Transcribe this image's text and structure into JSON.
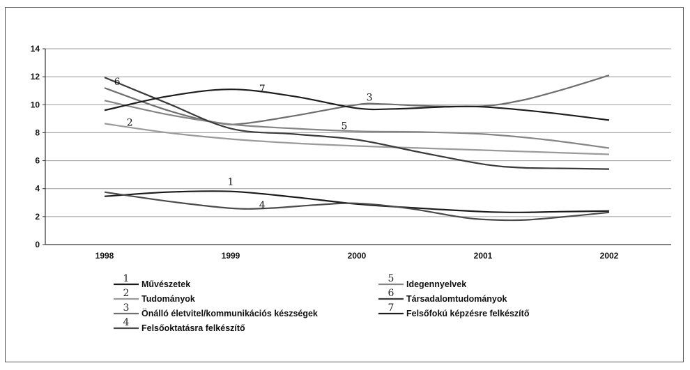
{
  "chart_data": {
    "type": "line",
    "x": [
      "1998",
      "1999",
      "2000",
      "2001",
      "2002"
    ],
    "ylim": [
      0,
      14
    ],
    "yticks": [
      "0",
      "2",
      "4",
      "6",
      "8",
      "10",
      "12",
      "14"
    ],
    "grid": true,
    "legend_position": "bottom",
    "series": [
      {
        "id": "1",
        "name": "Művészetek",
        "color": "#1a1a1a",
        "points": [
          [
            0,
            3.45
          ],
          [
            0.5,
            3.75
          ],
          [
            1,
            3.8
          ],
          [
            1.5,
            3.4
          ],
          [
            2,
            2.9
          ],
          [
            2.5,
            2.6
          ],
          [
            3,
            2.35
          ],
          [
            3.3,
            2.3
          ],
          [
            3.6,
            2.35
          ],
          [
            4,
            2.4
          ]
        ]
      },
      {
        "id": "2",
        "name": "Tudományok",
        "color": "#9a9a9a",
        "points": [
          [
            0,
            8.65
          ],
          [
            0.5,
            8.0
          ],
          [
            1,
            7.55
          ],
          [
            1.5,
            7.25
          ],
          [
            2,
            7.05
          ],
          [
            2.5,
            6.9
          ],
          [
            3,
            6.75
          ],
          [
            3.5,
            6.6
          ],
          [
            4,
            6.45
          ]
        ]
      },
      {
        "id": "3",
        "name": "Önálló életvitel/kommunikációs készségek",
        "color": "#6e6e6e",
        "points": [
          [
            0,
            11.2
          ],
          [
            0.5,
            9.6
          ],
          [
            0.9,
            8.7
          ],
          [
            1.1,
            8.65
          ],
          [
            1.5,
            9.2
          ],
          [
            2,
            10.0
          ],
          [
            2.2,
            10.05
          ],
          [
            2.6,
            9.9
          ],
          [
            3,
            9.9
          ],
          [
            3.3,
            10.3
          ],
          [
            3.6,
            11.0
          ],
          [
            4,
            12.1
          ]
        ]
      },
      {
        "id": "4",
        "name": "Felsőoktatásra felkészítő",
        "color": "#4a4a4a",
        "points": [
          [
            0,
            3.75
          ],
          [
            0.5,
            3.1
          ],
          [
            1,
            2.6
          ],
          [
            1.3,
            2.6
          ],
          [
            1.7,
            2.85
          ],
          [
            2,
            2.95
          ],
          [
            2.4,
            2.6
          ],
          [
            2.8,
            2.0
          ],
          [
            3,
            1.8
          ],
          [
            3.3,
            1.75
          ],
          [
            3.6,
            1.95
          ],
          [
            4,
            2.3
          ]
        ]
      },
      {
        "id": "5",
        "name": "Idegennyelvek",
        "color": "#858585",
        "points": [
          [
            0,
            10.3
          ],
          [
            0.5,
            9.3
          ],
          [
            1,
            8.6
          ],
          [
            1.5,
            8.3
          ],
          [
            2,
            8.1
          ],
          [
            2.5,
            8.05
          ],
          [
            3,
            7.9
          ],
          [
            3.5,
            7.5
          ],
          [
            4,
            6.9
          ]
        ]
      },
      {
        "id": "6",
        "name": "Társadalomtudományok",
        "color": "#3a3a3a",
        "points": [
          [
            0,
            11.95
          ],
          [
            0.5,
            10.1
          ],
          [
            1,
            8.3
          ],
          [
            1.5,
            7.9
          ],
          [
            2,
            7.5
          ],
          [
            2.5,
            6.6
          ],
          [
            3,
            5.75
          ],
          [
            3.3,
            5.5
          ],
          [
            3.6,
            5.45
          ],
          [
            4,
            5.4
          ]
        ]
      },
      {
        "id": "7",
        "name": "Felsőfokú képzésre felkészítő",
        "color": "#1c1c1c",
        "points": [
          [
            0,
            9.6
          ],
          [
            0.5,
            10.6
          ],
          [
            1,
            11.1
          ],
          [
            1.5,
            10.6
          ],
          [
            2,
            9.75
          ],
          [
            2.3,
            9.7
          ],
          [
            2.7,
            9.85
          ],
          [
            3,
            9.85
          ],
          [
            3.5,
            9.45
          ],
          [
            4,
            8.9
          ]
        ]
      }
    ],
    "line_labels": [
      {
        "text": "1",
        "x": 1.0,
        "y": 4.25
      },
      {
        "text": "2",
        "x": 0.2,
        "y": 8.5
      },
      {
        "text": "3",
        "x": 2.1,
        "y": 10.3
      },
      {
        "text": "4",
        "x": 1.25,
        "y": 2.6
      },
      {
        "text": "5",
        "x": 1.9,
        "y": 8.25
      },
      {
        "text": "6",
        "x": 0.1,
        "y": 11.4
      },
      {
        "text": "7",
        "x": 1.25,
        "y": 10.9
      }
    ]
  }
}
